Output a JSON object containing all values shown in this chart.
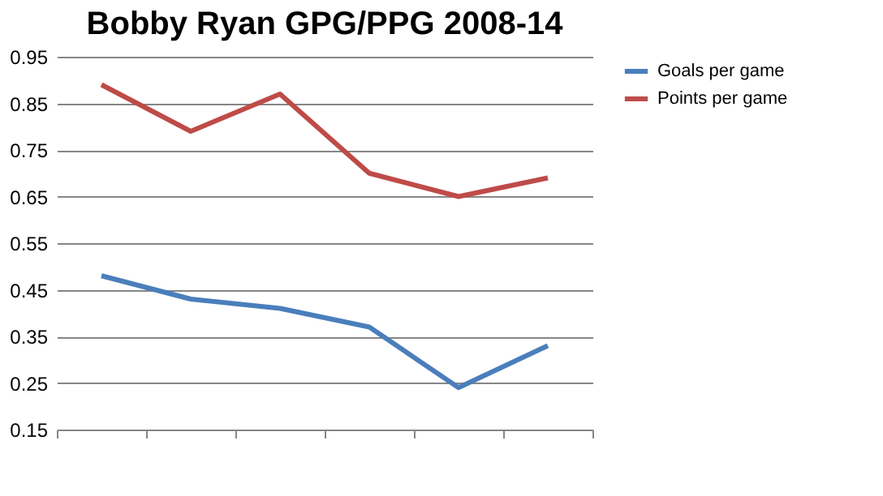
{
  "chart_data": {
    "type": "line",
    "title": "Bobby Ryan GPG/PPG 2008-14",
    "categories": [
      null,
      null,
      null,
      null,
      null,
      null
    ],
    "series": [
      {
        "name": "Goals per game",
        "color": "#4a7ebb",
        "values": [
          0.48,
          0.43,
          0.41,
          0.37,
          0.24,
          0.33
        ]
      },
      {
        "name": "Points per game",
        "color": "#be4b48",
        "values": [
          0.89,
          0.79,
          0.87,
          0.7,
          0.65,
          0.69
        ]
      }
    ],
    "ylim": [
      0.15,
      0.95
    ],
    "yticks": [
      0.15,
      0.25,
      0.35,
      0.45,
      0.55,
      0.65,
      0.75,
      0.85,
      0.95
    ],
    "grid": "y",
    "legend": "right",
    "tick_labels": "y",
    "marker": "none",
    "line_style": "solid"
  }
}
